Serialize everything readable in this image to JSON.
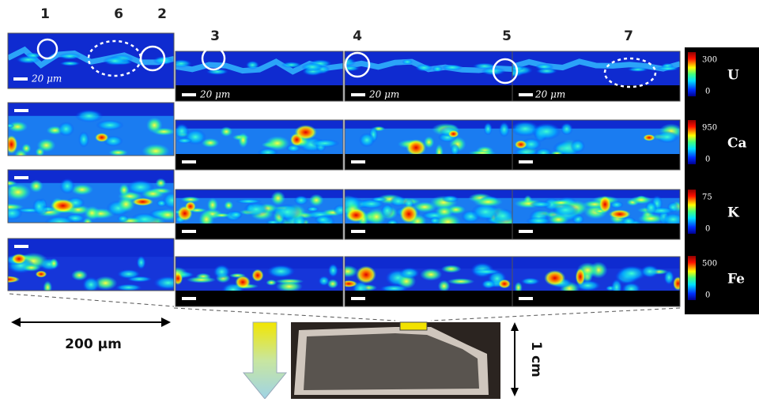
{
  "figure": {
    "region_labels": [
      "1",
      "6",
      "2",
      "3",
      "4",
      "5",
      "7"
    ],
    "scale_labels": [
      "20 μm",
      "20 μm",
      "20 μm",
      "20 μm"
    ],
    "elements": [
      {
        "name": "U",
        "max": 300,
        "min": 0
      },
      {
        "name": "Ca",
        "max": 950,
        "min": 0
      },
      {
        "name": "K",
        "max": 75,
        "min": 0
      },
      {
        "name": "Fe",
        "max": 500,
        "min": 0
      }
    ],
    "width_label": "200 μm",
    "height_label": "1 cm"
  }
}
